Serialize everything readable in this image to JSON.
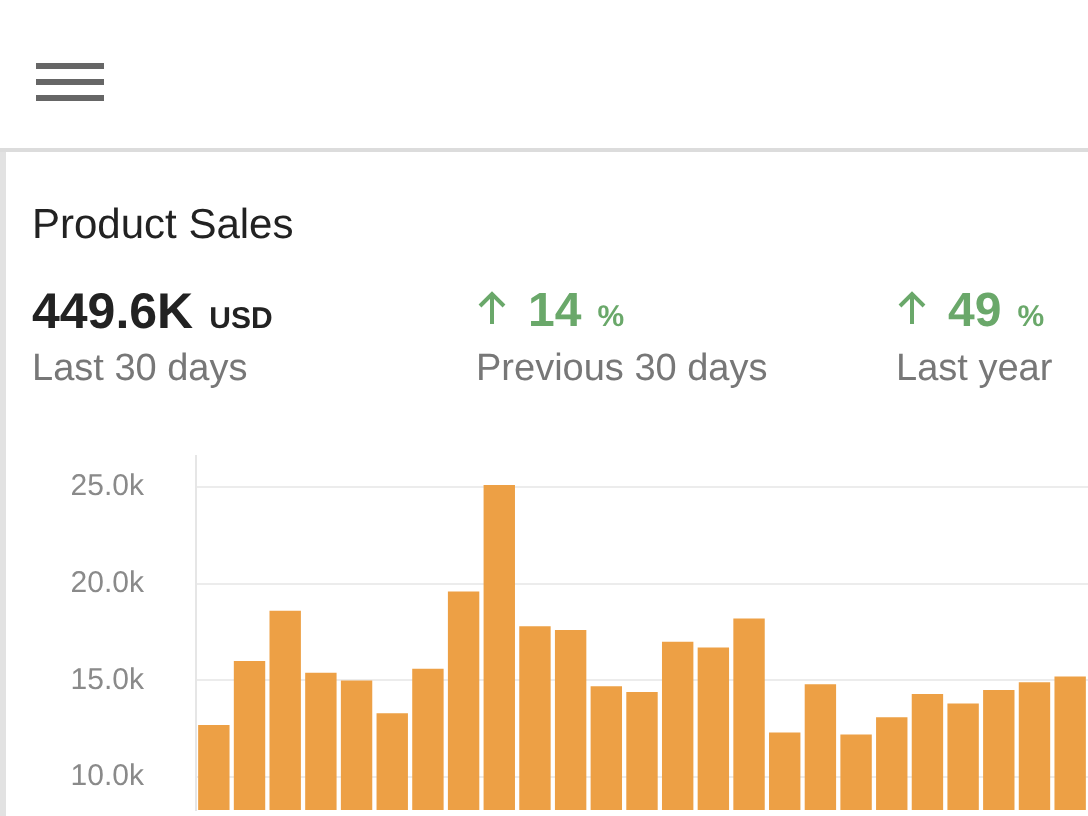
{
  "chart_data": {
    "type": "bar",
    "title": "Product Sales",
    "annotations": [
      "449.6K",
      "USD",
      "Last 30 days",
      "14",
      "%",
      "Previous 30 days",
      "49",
      "%",
      "Last year"
    ],
    "categories": [
      null,
      null,
      null,
      null,
      null,
      null,
      null,
      null,
      null,
      null,
      null,
      null,
      null,
      null,
      null,
      null,
      null,
      null,
      null,
      null,
      null,
      null,
      null,
      null,
      null
    ],
    "values": [
      12700,
      16000,
      18600,
      15400,
      15000,
      13300,
      15600,
      19600,
      25100,
      17800,
      17600,
      14700,
      14400,
      17000,
      16700,
      18200,
      12300,
      14800,
      12200,
      13100,
      14300,
      13800,
      14500,
      14900,
      15200
    ],
    "color": "#eda045",
    "ylim": [
      8300,
      26600
    ],
    "yticks": [
      {
        "value": 10000,
        "label": "10.0k"
      },
      {
        "value": 15000,
        "label": "15.0k"
      },
      {
        "value": 20000,
        "label": "20.0k"
      },
      {
        "value": 25000,
        "label": "25.0k"
      }
    ],
    "grid": "y",
    "legend": false,
    "tick_labels": "y"
  }
}
